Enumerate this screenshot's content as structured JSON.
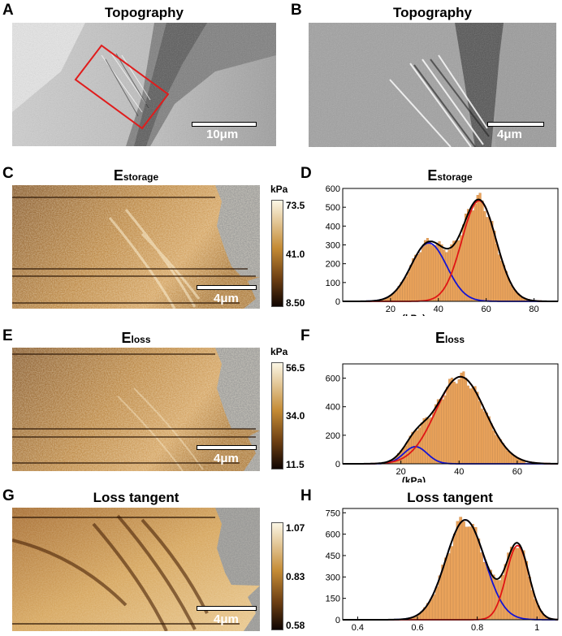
{
  "figure": {
    "panelA": {
      "letter": "A",
      "title": "Topography",
      "scale": "10μm"
    },
    "panelB": {
      "letter": "B",
      "title": "Topography",
      "scale": "4μm"
    },
    "panelC": {
      "letter": "C",
      "title_main": "E",
      "title_sub": "storage",
      "scale": "4μm",
      "cbar_unit": "kPa",
      "cbar_max": "73.5",
      "cbar_mid": "41.0",
      "cbar_min": "8.50"
    },
    "panelD": {
      "letter": "D",
      "title_main": "E",
      "title_sub": "storage",
      "xlabel": "(kPa)"
    },
    "panelE": {
      "letter": "E",
      "title_main": "E",
      "title_sub": "loss",
      "scale": "4μm",
      "cbar_unit": "kPa",
      "cbar_max": "56.5",
      "cbar_mid": "34.0",
      "cbar_min": "11.5"
    },
    "panelF": {
      "letter": "F",
      "title_main": "E",
      "title_sub": "loss",
      "xlabel": "(kPa)"
    },
    "panelG": {
      "letter": "G",
      "title": "Loss tangent",
      "scale": "4μm",
      "cbar_max": "1.07",
      "cbar_mid": "0.83",
      "cbar_min": "0.58"
    },
    "panelH": {
      "letter": "H",
      "title": "Loss tangent"
    }
  },
  "colors": {
    "fit_total": "#000000",
    "fit_low": "#1414d4",
    "fit_high": "#e01515",
    "bars": "#e9a25a",
    "roi_box": "#e01c1c"
  },
  "chart_data": [
    {
      "id": "D",
      "type": "bar",
      "title": "Estorage",
      "xlabel": "(kPa)",
      "ylabel": "",
      "xlim": [
        0,
        90
      ],
      "ylim": [
        0,
        600
      ],
      "xticks": [
        20,
        40,
        60,
        80
      ],
      "yticks": [
        0,
        100,
        200,
        300,
        400,
        500,
        600
      ],
      "components": [
        {
          "color": "blue",
          "mu": 36,
          "sigma": 7.5,
          "amp": 310
        },
        {
          "color": "red",
          "mu": 57,
          "sigma": 7.2,
          "amp": 535
        }
      ],
      "bar_range": [
        10,
        85
      ],
      "bar_width": 1.0
    },
    {
      "id": "F",
      "type": "bar",
      "title": "Eloss",
      "xlabel": "(kPa)",
      "ylabel": "",
      "xlim": [
        0,
        74
      ],
      "ylim": [
        0,
        700
      ],
      "xticks": [
        20,
        40,
        60
      ],
      "yticks": [
        0,
        200,
        400,
        600
      ],
      "components": [
        {
          "color": "blue",
          "mu": 25,
          "sigma": 4.0,
          "amp": 120
        },
        {
          "color": "red",
          "mu": 40.5,
          "sigma": 8.5,
          "amp": 610
        }
      ],
      "bar_range": [
        14,
        62
      ],
      "bar_width": 0.8
    },
    {
      "id": "H",
      "type": "bar",
      "title": "Loss tangent",
      "xlabel": "",
      "ylabel": "",
      "xlim": [
        0.35,
        1.07
      ],
      "ylim": [
        0,
        780
      ],
      "xticks": [
        0.4,
        0.6,
        0.8,
        1.0
      ],
      "yticks": [
        0,
        150,
        300,
        450,
        600,
        750
      ],
      "components": [
        {
          "color": "blue",
          "mu": 0.76,
          "sigma": 0.065,
          "amp": 700
        },
        {
          "color": "red",
          "mu": 0.935,
          "sigma": 0.038,
          "amp": 520
        }
      ],
      "bar_range": [
        0.45,
        1.06
      ],
      "bar_width": 0.01
    }
  ]
}
